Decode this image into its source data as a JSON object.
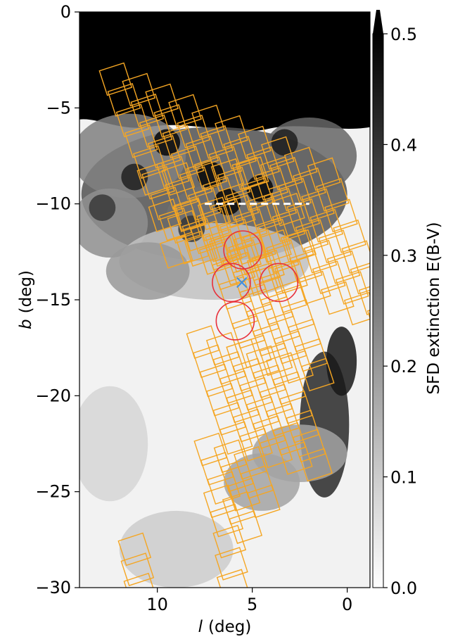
{
  "chart_data": {
    "type": "heatmap",
    "xlabel_var": "l",
    "xlabel_unit": "(deg)",
    "ylabel_var": "b",
    "ylabel_unit": "(deg)",
    "xlim": [
      14.1,
      -1.2
    ],
    "ylim": [
      -30,
      0
    ],
    "xticks": [
      {
        "value": 10,
        "label": "10"
      },
      {
        "value": 5,
        "label": "5"
      },
      {
        "value": 0,
        "label": "0"
      }
    ],
    "yticks": [
      {
        "value": 0,
        "label": "0"
      },
      {
        "value": -5,
        "label": "−5"
      },
      {
        "value": -10,
        "label": "−10"
      },
      {
        "value": -15,
        "label": "−15"
      },
      {
        "value": -20,
        "label": "−20"
      },
      {
        "value": -25,
        "label": "−25"
      },
      {
        "value": -30,
        "label": "−30"
      }
    ],
    "colorbar": {
      "label": "SFD extinction E(B-V)",
      "range": [
        0,
        0.5
      ],
      "extend": "max",
      "colormap": "gray_r",
      "ticks": [
        {
          "value": 0.0,
          "label": "0.0"
        },
        {
          "value": 0.1,
          "label": "0.1"
        },
        {
          "value": 0.2,
          "label": "0.2"
        },
        {
          "value": 0.3,
          "label": "0.3"
        },
        {
          "value": 0.4,
          "label": "0.4"
        },
        {
          "value": 0.5,
          "label": "0.5"
        }
      ]
    },
    "dashed_line": {
      "l": [
        7.5,
        2.0
      ],
      "b": -10.0,
      "color": "#ffffff"
    },
    "circles": [
      {
        "l": 5.5,
        "b": -12.4,
        "radius_deg": 1.0
      },
      {
        "l": 6.1,
        "b": -14.1,
        "radius_deg": 1.0
      },
      {
        "l": 3.6,
        "b": -14.1,
        "radius_deg": 1.0
      },
      {
        "l": 5.9,
        "b": -16.1,
        "radius_deg": 1.0
      }
    ],
    "circle_color": "#e8303a",
    "marker": {
      "symbol": "x",
      "l": 5.55,
      "b": -14.1,
      "color": "#3a8ee6"
    },
    "field_color": "#f5a623",
    "field_size_deg": 1.35,
    "field_rotation_deg": -18,
    "fields": [
      [
        10.2,
        -8.7
      ],
      [
        9.6,
        -10.6
      ],
      [
        9.0,
        -12.5
      ],
      [
        8.9,
        -8.7
      ],
      [
        8.3,
        -10.6
      ],
      [
        7.7,
        -12.4
      ],
      [
        7.6,
        -8.6
      ],
      [
        7.0,
        -10.5
      ],
      [
        6.4,
        -12.4
      ],
      [
        6.3,
        -8.5
      ],
      [
        5.7,
        -10.4
      ],
      [
        5.1,
        -12.3
      ],
      [
        5.0,
        -8.4
      ],
      [
        4.4,
        -10.3
      ],
      [
        3.8,
        -12.2
      ],
      [
        3.7,
        -8.4
      ],
      [
        3.1,
        -10.3
      ],
      [
        2.5,
        -12.2
      ]
    ],
    "grids": [
      {
        "l0": 12.2,
        "b0": -3.5,
        "cols": 10,
        "rows": 8,
        "dl": [
          1.22,
          -0.55
        ],
        "db": [
          0.45,
          1.08
        ]
      },
      {
        "l0": 8.6,
        "b0": -11.2,
        "cols": 4,
        "rows": 2,
        "dl": [
          1.22,
          -0.55
        ],
        "db": [
          0.45,
          1.08
        ]
      },
      {
        "l0": 6.6,
        "b0": -12.6,
        "cols": 4,
        "rows": 6,
        "dl": [
          1.1,
          -0.4
        ],
        "db": [
          0.35,
          1.02
        ]
      },
      {
        "l0": 7.6,
        "b0": -17.2,
        "cols": 5,
        "rows": 6,
        "dl": [
          1.05,
          -0.35
        ],
        "db": [
          0.35,
          1.0
        ]
      },
      {
        "l0": 7.2,
        "b0": -22.8,
        "cols": 3,
        "rows": 3,
        "dl": [
          1.05,
          -0.35
        ],
        "db": [
          0.35,
          1.0
        ]
      },
      {
        "l0": 6.7,
        "b0": -25.5,
        "cols": 2,
        "rows": 2,
        "dl": [
          1.0,
          -0.35
        ],
        "db": [
          0.35,
          1.0
        ]
      },
      {
        "l0": 6.2,
        "b0": -27.6,
        "cols": 1,
        "rows": 4,
        "dl": [
          1.0,
          -0.35
        ],
        "db": [
          0.1,
          1.15
        ]
      },
      {
        "l0": 11.2,
        "b0": -28.0,
        "cols": 1,
        "rows": 3,
        "dl": [
          1.0,
          -0.35
        ],
        "db": [
          0.15,
          1.05
        ]
      }
    ],
    "dust_clouds": [
      {
        "l": 7,
        "b": -9.5,
        "rl": 7,
        "rb": 3.5,
        "v": 0.34
      },
      {
        "l": 11.5,
        "b": -7.5,
        "rl": 3,
        "rb": 2.2,
        "v": 0.25
      },
      {
        "l": 5,
        "b": -10.5,
        "rl": 4.5,
        "rb": 1.8,
        "v": 0.28
      },
      {
        "l": 2,
        "b": -7.5,
        "rl": 2.5,
        "rb": 2,
        "v": 0.3
      },
      {
        "l": 12.5,
        "b": -11,
        "rl": 2,
        "rb": 1.8,
        "v": 0.22
      },
      {
        "l": 7,
        "b": -13,
        "rl": 5,
        "rb": 2,
        "v": 0.12
      },
      {
        "l": 10.5,
        "b": -13.5,
        "rl": 2.2,
        "rb": 1.5,
        "v": 0.2
      },
      {
        "l": 1.2,
        "b": -21.5,
        "rl": 1.3,
        "rb": 3.8,
        "v": 0.42
      },
      {
        "l": 0.3,
        "b": -18.2,
        "rl": 0.8,
        "rb": 1.8,
        "v": 0.45
      },
      {
        "l": 2.5,
        "b": -23,
        "rl": 2.5,
        "rb": 1.5,
        "v": 0.18
      },
      {
        "l": 4.5,
        "b": -24.5,
        "rl": 2,
        "rb": 1.5,
        "v": 0.18
      },
      {
        "l": 9,
        "b": -28,
        "rl": 3,
        "rb": 2,
        "v": 0.1
      },
      {
        "l": 12.5,
        "b": -22.5,
        "rl": 2,
        "rb": 3,
        "v": 0.08
      }
    ],
    "dust_sparkles": [
      {
        "l": 9.5,
        "b": -6.8,
        "v": 0.5
      },
      {
        "l": 7.2,
        "b": -8.5,
        "v": 0.55
      },
      {
        "l": 6.3,
        "b": -9.9,
        "v": 0.5
      },
      {
        "l": 4.6,
        "b": -9.2,
        "v": 0.5
      },
      {
        "l": 3.3,
        "b": -6.8,
        "v": 0.45
      },
      {
        "l": 11.2,
        "b": -8.6,
        "v": 0.45
      },
      {
        "l": 12.9,
        "b": -10.2,
        "v": 0.4
      },
      {
        "l": 8.2,
        "b": -11.3,
        "v": 0.4
      }
    ]
  }
}
